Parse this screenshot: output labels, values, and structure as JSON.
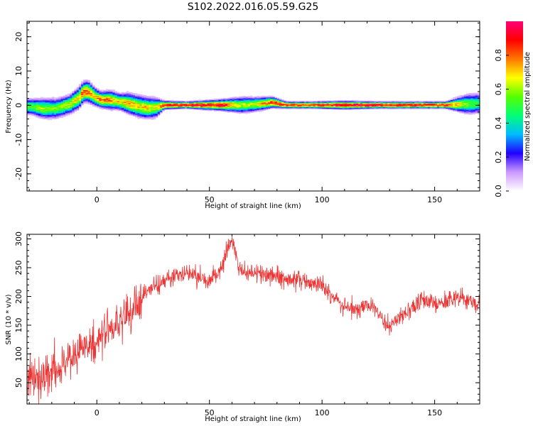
{
  "title": "S102.2022.016.05.59.G25",
  "chart_data": [
    {
      "type": "heatmap",
      "xlabel": "Height of straight line (km)",
      "ylabel": "Frequency (Hz)",
      "xlim": [
        -31,
        170
      ],
      "ylim": [
        -25,
        24.5
      ],
      "x_ticks": [
        0,
        50,
        100,
        150
      ],
      "y_ticks": [
        -20,
        -10,
        0,
        10,
        20
      ],
      "colorbar": {
        "label": "Normalized spectral amplitude",
        "ticks": [
          0.0,
          0.2,
          0.4,
          0.6,
          0.8
        ],
        "range": [
          0,
          1
        ],
        "colormap": [
          "#ffffff",
          "#cc99ff",
          "#2200ff",
          "#00bbff",
          "#00ff77",
          "#55ff00",
          "#ffff00",
          "#ff7700",
          "#ff0000",
          "#ff0077"
        ]
      },
      "ridge": {
        "x": [
          -29,
          -24,
          -18,
          -12,
          -8,
          -6,
          -4,
          -1,
          2,
          6,
          10,
          14,
          18,
          22,
          26,
          30,
          40,
          55,
          65,
          72,
          78,
          84,
          95,
          110,
          125,
          155,
          165,
          170
        ],
        "freq": [
          -0.5,
          -1.0,
          -1.0,
          0.2,
          2.0,
          3.8,
          4.0,
          2.5,
          1.5,
          1.5,
          1.0,
          0.5,
          -0.3,
          -0.8,
          -0.8,
          0.0,
          0.0,
          0.0,
          0.0,
          0.3,
          0.8,
          0.0,
          0.0,
          0.0,
          0.0,
          0.0,
          0.3,
          0.5
        ],
        "amp": [
          0.55,
          0.6,
          0.55,
          0.65,
          0.7,
          0.85,
          0.8,
          0.75,
          0.8,
          0.75,
          0.7,
          0.75,
          0.7,
          0.7,
          0.65,
          0.9,
          0.95,
          0.9,
          0.6,
          0.7,
          0.9,
          0.9,
          0.85,
          0.95,
          0.95,
          0.9,
          0.55,
          0.5
        ],
        "spread": [
          1.2,
          1.5,
          1.5,
          1.4,
          1.6,
          1.5,
          1.6,
          1.3,
          1.2,
          1.4,
          1.2,
          1.5,
          1.6,
          1.6,
          1.5,
          0.6,
          0.5,
          0.8,
          1.2,
          1.0,
          0.8,
          0.5,
          0.5,
          0.6,
          0.5,
          0.5,
          1.5,
          1.5
        ]
      }
    },
    {
      "type": "line",
      "xlabel": "Height of straight line (km)",
      "ylabel": "SNR (10 * v/v)",
      "xlim": [
        -31,
        170
      ],
      "ylim": [
        13,
        308
      ],
      "x_ticks": [
        0,
        50,
        100,
        150
      ],
      "y_ticks": [
        50,
        100,
        150,
        200,
        250,
        300
      ],
      "color": "#ee3333",
      "series": [
        {
          "x": [
            -31,
            -25,
            -20,
            -15,
            -10,
            -5,
            0,
            5,
            10,
            15,
            20,
            25,
            30,
            35,
            40,
            45,
            50,
            55,
            58,
            60,
            63,
            65,
            70,
            75,
            80,
            85,
            90,
            95,
            100,
            105,
            110,
            115,
            120,
            125,
            128,
            130,
            135,
            140,
            145,
            150,
            155,
            160,
            165,
            170
          ],
          "y": [
            55,
            60,
            70,
            80,
            100,
            115,
            125,
            140,
            155,
            180,
            200,
            215,
            228,
            235,
            238,
            236,
            225,
            245,
            285,
            300,
            250,
            240,
            240,
            238,
            232,
            230,
            228,
            225,
            220,
            200,
            180,
            178,
            185,
            175,
            155,
            148,
            165,
            180,
            195,
            188,
            190,
            200,
            195,
            185
          ]
        }
      ]
    }
  ]
}
